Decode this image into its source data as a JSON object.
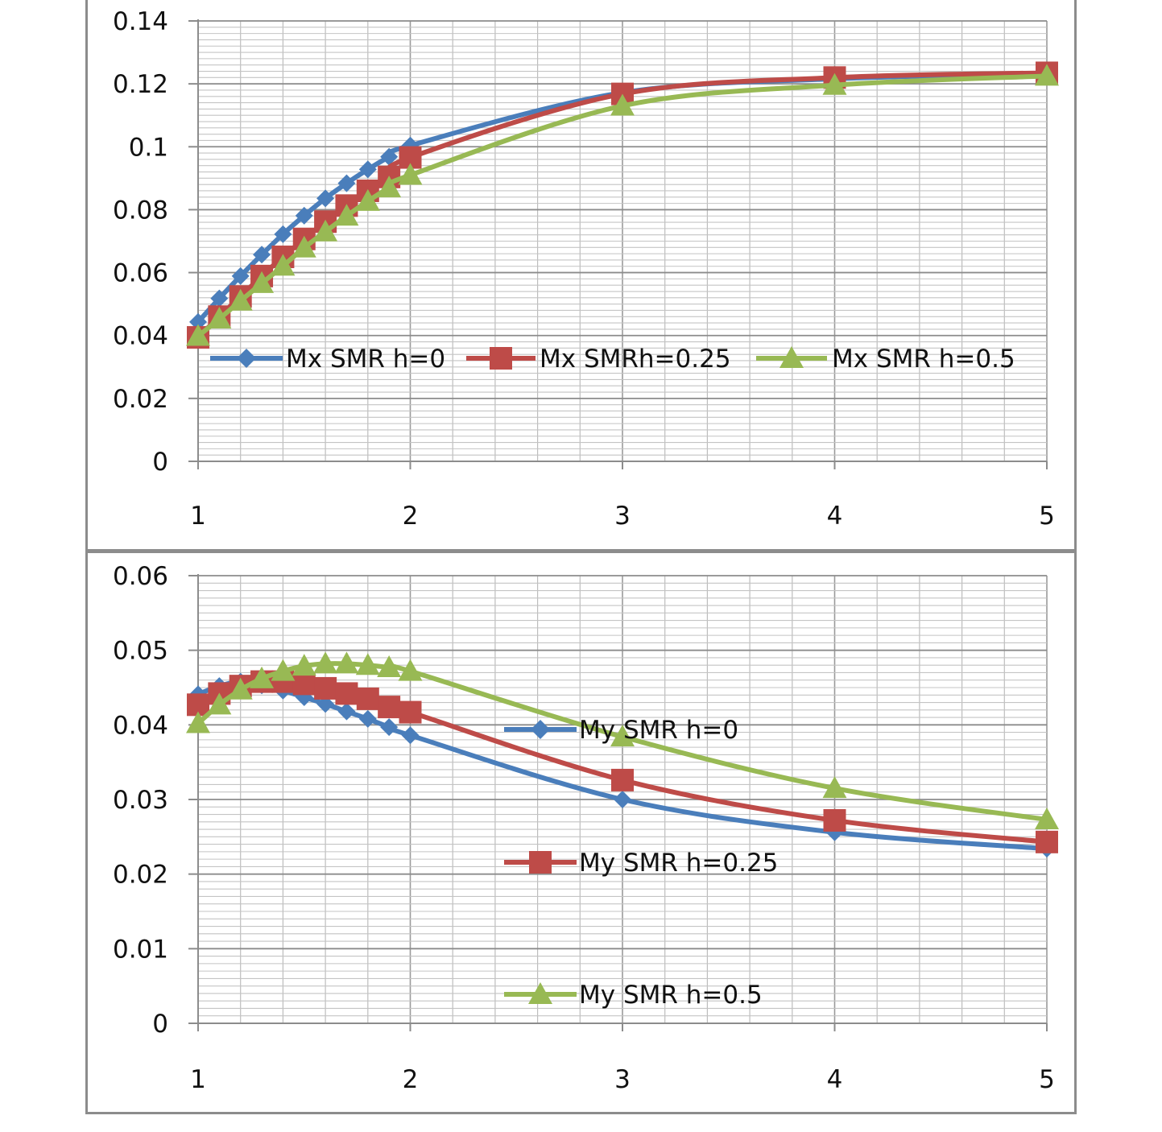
{
  "chart_data": [
    {
      "type": "line",
      "title": "",
      "xlabel": "",
      "ylabel": "",
      "x_tick_labels": [
        "1",
        "2",
        "3",
        "4",
        "5"
      ],
      "y_tick_labels": [
        "0",
        "0.02",
        "0.04",
        "0.06",
        "0.08",
        "0.1",
        "0.12",
        "0.14"
      ],
      "xlim": [
        1,
        5
      ],
      "ylim": [
        0,
        0.14
      ],
      "grid": true,
      "legend_position": "inside-middle",
      "x": [
        1,
        1.1,
        1.2,
        1.3,
        1.4,
        1.5,
        1.6,
        1.7,
        1.8,
        1.9,
        2,
        3,
        4,
        5
      ],
      "series": [
        {
          "name": "Mx SMR h=0",
          "color": "#4a7ebb",
          "marker": "diamond",
          "values": [
            0.0443,
            0.0518,
            0.0589,
            0.0657,
            0.0722,
            0.0781,
            0.0836,
            0.0884,
            0.0928,
            0.0968,
            0.1004,
            0.1172,
            0.1216,
            0.1232
          ]
        },
        {
          "name": "Mx SMRh=0.25",
          "color": "#be4b48",
          "marker": "square",
          "values": [
            0.0394,
            0.046,
            0.0524,
            0.0589,
            0.065,
            0.0707,
            0.0762,
            0.0813,
            0.086,
            0.0904,
            0.0966,
            0.1168,
            0.122,
            0.1235
          ]
        },
        {
          "name": "Mx SMR h=0.5",
          "color": "#98b954",
          "marker": "triangle",
          "values": [
            0.0398,
            0.0453,
            0.051,
            0.0566,
            0.0621,
            0.0679,
            0.073,
            0.078,
            0.0827,
            0.087,
            0.091,
            0.113,
            0.1196,
            0.1225
          ]
        }
      ]
    },
    {
      "type": "line",
      "title": "",
      "xlabel": "",
      "ylabel": "",
      "x_tick_labels": [
        "1",
        "2",
        "3",
        "4",
        "5"
      ],
      "y_tick_labels": [
        "0",
        "0.01",
        "0.02",
        "0.03",
        "0.04",
        "0.05",
        "0.06"
      ],
      "xlim": [
        1,
        5
      ],
      "ylim": [
        0,
        0.06
      ],
      "grid": true,
      "legend_position": "inside-center",
      "x": [
        1,
        1.1,
        1.2,
        1.3,
        1.4,
        1.5,
        1.6,
        1.7,
        1.8,
        1.9,
        2,
        3,
        4,
        5
      ],
      "series": [
        {
          "name": "My SMR h=0",
          "color": "#4a7ebb",
          "marker": "diamond",
          "values": [
            0.0441,
            0.0452,
            0.0458,
            0.0453,
            0.0446,
            0.0437,
            0.0428,
            0.0418,
            0.0408,
            0.0397,
            0.0386,
            0.03,
            0.0256,
            0.0234
          ]
        },
        {
          "name": "My SMR h=0.25",
          "color": "#be4b48",
          "marker": "square",
          "values": [
            0.0427,
            0.0442,
            0.0452,
            0.0458,
            0.0458,
            0.0455,
            0.0449,
            0.0442,
            0.0435,
            0.0424,
            0.0417,
            0.0326,
            0.0272,
            0.0243
          ]
        },
        {
          "name": "My SMR h=0.5",
          "color": "#98b954",
          "marker": "triangle",
          "values": [
            0.0402,
            0.0427,
            0.0447,
            0.0462,
            0.0472,
            0.0479,
            0.0482,
            0.0482,
            0.048,
            0.0477,
            0.0472,
            0.0384,
            0.0315,
            0.0273
          ]
        }
      ]
    }
  ]
}
